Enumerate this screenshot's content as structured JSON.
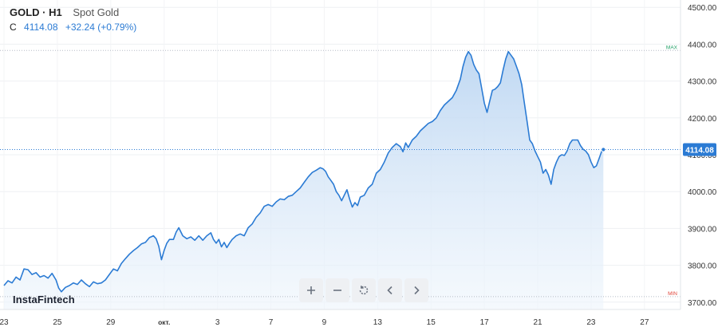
{
  "header": {
    "symbol": "GOLD · H1",
    "description": "Spot Gold",
    "close_label": "C",
    "close_value": "4114.08",
    "change": "+32.24 (+0.79%)"
  },
  "brand": {
    "name": "InstaFintech"
  },
  "toolbar": {
    "zoom_in_icon": "plus-icon",
    "zoom_out_icon": "minus-icon",
    "reset_icon": "reset-icon",
    "back_icon": "chevron-left-icon",
    "forward_icon": "chevron-right-icon"
  },
  "colors": {
    "line": "#2b7bd4",
    "fill_top": "#bcd6f2",
    "fill_bottom": "#eef5fc",
    "max_label": "#26a269",
    "min_label": "#e0453a",
    "last_price_bg": "#2b7bd4"
  },
  "chart_data": {
    "type": "area",
    "y_axis": {
      "ticks": [
        3700,
        3800,
        3900,
        4000,
        4100,
        4200,
        4300,
        4400,
        4500
      ],
      "tick_labels": [
        "3700.00",
        "3800.00",
        "3900.00",
        "4000.00",
        "4100.00",
        "4200.00",
        "4300.00",
        "4400.00",
        "4500.00"
      ],
      "ylim": [
        3680,
        4520
      ]
    },
    "x_axis": {
      "ticks": [
        {
          "label": "23",
          "x": 0
        },
        {
          "label": "25",
          "x": 2
        },
        {
          "label": "29",
          "x": 4
        },
        {
          "label": "окт.",
          "x": 6
        },
        {
          "label": "3",
          "x": 8
        },
        {
          "label": "7",
          "x": 10
        },
        {
          "label": "9",
          "x": 12
        },
        {
          "label": "13",
          "x": 14
        },
        {
          "label": "15",
          "x": 16
        },
        {
          "label": "17",
          "x": 18
        },
        {
          "label": "21",
          "x": 20
        },
        {
          "label": "23",
          "x": 22
        },
        {
          "label": "27",
          "x": 24
        }
      ],
      "xlim": [
        -0.15,
        25.35
      ]
    },
    "max_level": {
      "label": "MAX",
      "value": 4383
    },
    "min_level": {
      "label": "MIN",
      "value": 3715
    },
    "last_price": {
      "label": "4114.08",
      "value": 4114.08
    },
    "series": [
      {
        "points": [
          [
            0.0,
            3745
          ],
          [
            0.15,
            3758
          ],
          [
            0.3,
            3752
          ],
          [
            0.45,
            3768
          ],
          [
            0.6,
            3760
          ],
          [
            0.75,
            3790
          ],
          [
            0.9,
            3788
          ],
          [
            1.05,
            3775
          ],
          [
            1.2,
            3780
          ],
          [
            1.35,
            3768
          ],
          [
            1.5,
            3772
          ],
          [
            1.65,
            3765
          ],
          [
            1.8,
            3778
          ],
          [
            1.95,
            3760
          ],
          [
            2.05,
            3738
          ],
          [
            2.15,
            3728
          ],
          [
            2.3,
            3740
          ],
          [
            2.45,
            3745
          ],
          [
            2.6,
            3752
          ],
          [
            2.75,
            3748
          ],
          [
            2.9,
            3760
          ],
          [
            3.05,
            3750
          ],
          [
            3.2,
            3742
          ],
          [
            3.35,
            3755
          ],
          [
            3.5,
            3750
          ],
          [
            3.65,
            3752
          ],
          [
            3.8,
            3760
          ],
          [
            3.95,
            3775
          ],
          [
            4.1,
            3790
          ],
          [
            4.25,
            3785
          ],
          [
            4.4,
            3805
          ],
          [
            4.55,
            3818
          ],
          [
            4.7,
            3830
          ],
          [
            4.85,
            3840
          ],
          [
            5.0,
            3848
          ],
          [
            5.15,
            3858
          ],
          [
            5.3,
            3862
          ],
          [
            5.45,
            3875
          ],
          [
            5.6,
            3880
          ],
          [
            5.7,
            3872
          ],
          [
            5.8,
            3852
          ],
          [
            5.9,
            3815
          ],
          [
            6.0,
            3840
          ],
          [
            6.1,
            3860
          ],
          [
            6.2,
            3870
          ],
          [
            6.35,
            3870
          ],
          [
            6.45,
            3890
          ],
          [
            6.55,
            3902
          ],
          [
            6.7,
            3880
          ],
          [
            6.85,
            3872
          ],
          [
            7.0,
            3877
          ],
          [
            7.15,
            3868
          ],
          [
            7.3,
            3880
          ],
          [
            7.45,
            3868
          ],
          [
            7.6,
            3880
          ],
          [
            7.75,
            3888
          ],
          [
            7.85,
            3870
          ],
          [
            7.95,
            3860
          ],
          [
            8.05,
            3870
          ],
          [
            8.15,
            3850
          ],
          [
            8.25,
            3862
          ],
          [
            8.35,
            3848
          ],
          [
            8.45,
            3860
          ],
          [
            8.55,
            3870
          ],
          [
            8.7,
            3880
          ],
          [
            8.85,
            3885
          ],
          [
            9.0,
            3880
          ],
          [
            9.15,
            3902
          ],
          [
            9.3,
            3912
          ],
          [
            9.45,
            3930
          ],
          [
            9.6,
            3942
          ],
          [
            9.75,
            3960
          ],
          [
            9.9,
            3965
          ],
          [
            10.05,
            3960
          ],
          [
            10.2,
            3972
          ],
          [
            10.35,
            3980
          ],
          [
            10.5,
            3978
          ],
          [
            10.65,
            3987
          ],
          [
            10.8,
            3990
          ],
          [
            10.95,
            4000
          ],
          [
            11.1,
            4010
          ],
          [
            11.25,
            4025
          ],
          [
            11.4,
            4040
          ],
          [
            11.55,
            4052
          ],
          [
            11.7,
            4058
          ],
          [
            11.85,
            4065
          ],
          [
            11.95,
            4062
          ],
          [
            12.05,
            4055
          ],
          [
            12.15,
            4040
          ],
          [
            12.25,
            4030
          ],
          [
            12.35,
            4020
          ],
          [
            12.45,
            4000
          ],
          [
            12.55,
            3990
          ],
          [
            12.65,
            3975
          ],
          [
            12.75,
            3990
          ],
          [
            12.85,
            4005
          ],
          [
            12.95,
            3980
          ],
          [
            13.05,
            3958
          ],
          [
            13.15,
            3970
          ],
          [
            13.25,
            3962
          ],
          [
            13.35,
            3985
          ],
          [
            13.5,
            3990
          ],
          [
            13.65,
            4010
          ],
          [
            13.8,
            4020
          ],
          [
            13.95,
            4050
          ],
          [
            14.1,
            4060
          ],
          [
            14.25,
            4080
          ],
          [
            14.4,
            4105
          ],
          [
            14.55,
            4120
          ],
          [
            14.7,
            4130
          ],
          [
            14.85,
            4122
          ],
          [
            14.95,
            4108
          ],
          [
            15.05,
            4132
          ],
          [
            15.15,
            4120
          ],
          [
            15.3,
            4140
          ],
          [
            15.45,
            4150
          ],
          [
            15.6,
            4165
          ],
          [
            15.75,
            4175
          ],
          [
            15.9,
            4185
          ],
          [
            16.05,
            4190
          ],
          [
            16.2,
            4200
          ],
          [
            16.35,
            4220
          ],
          [
            16.5,
            4235
          ],
          [
            16.65,
            4245
          ],
          [
            16.8,
            4255
          ],
          [
            16.95,
            4275
          ],
          [
            17.1,
            4305
          ],
          [
            17.2,
            4340
          ],
          [
            17.3,
            4365
          ],
          [
            17.4,
            4380
          ],
          [
            17.5,
            4370
          ],
          [
            17.6,
            4345
          ],
          [
            17.7,
            4330
          ],
          [
            17.8,
            4320
          ],
          [
            17.9,
            4280
          ],
          [
            18.0,
            4240
          ],
          [
            18.1,
            4215
          ],
          [
            18.2,
            4245
          ],
          [
            18.3,
            4275
          ],
          [
            18.4,
            4278
          ],
          [
            18.5,
            4285
          ],
          [
            18.6,
            4295
          ],
          [
            18.7,
            4330
          ],
          [
            18.8,
            4360
          ],
          [
            18.9,
            4380
          ],
          [
            19.0,
            4370
          ],
          [
            19.1,
            4360
          ],
          [
            19.2,
            4340
          ],
          [
            19.3,
            4320
          ],
          [
            19.4,
            4290
          ],
          [
            19.5,
            4240
          ],
          [
            19.6,
            4190
          ],
          [
            19.7,
            4140
          ],
          [
            19.8,
            4130
          ],
          [
            19.9,
            4110
          ],
          [
            20.0,
            4095
          ],
          [
            20.1,
            4080
          ],
          [
            20.2,
            4050
          ],
          [
            20.3,
            4060
          ],
          [
            20.4,
            4045
          ],
          [
            20.5,
            4020
          ],
          [
            20.6,
            4060
          ],
          [
            20.7,
            4080
          ],
          [
            20.8,
            4095
          ],
          [
            20.9,
            4100
          ],
          [
            21.0,
            4098
          ],
          [
            21.1,
            4110
          ],
          [
            21.2,
            4130
          ],
          [
            21.3,
            4140
          ],
          [
            21.4,
            4140
          ],
          [
            21.5,
            4140
          ],
          [
            21.6,
            4125
          ],
          [
            21.7,
            4115
          ],
          [
            21.8,
            4110
          ],
          [
            21.9,
            4100
          ],
          [
            22.0,
            4080
          ],
          [
            22.1,
            4065
          ],
          [
            22.2,
            4070
          ],
          [
            22.3,
            4090
          ],
          [
            22.4,
            4110
          ],
          [
            22.46,
            4114.08
          ]
        ]
      }
    ]
  }
}
